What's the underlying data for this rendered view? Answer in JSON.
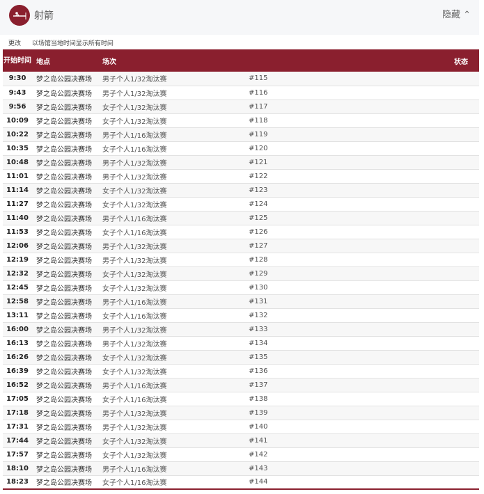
{
  "header": {
    "sport": "射箭",
    "hide_label": "隐藏",
    "brand_color": "#8a1f2e",
    "logo_icon": "archery-icon"
  },
  "notice": {
    "change": "更改",
    "text": "以场馆当地时间显示所有时间"
  },
  "table": {
    "columns": {
      "time": "开始时间",
      "venue": "地点",
      "event": "场次",
      "status": "状态"
    },
    "rows": [
      {
        "time": "9:30",
        "venue": "梦之岛公园决赛场",
        "event": "男子个人1/32淘汰赛",
        "num": "#115"
      },
      {
        "time": "9:43",
        "venue": "梦之岛公园决赛场",
        "event": "男子个人1/32淘汰赛",
        "num": "#116"
      },
      {
        "time": "9:56",
        "venue": "梦之岛公园决赛场",
        "event": "女子个人1/32淘汰赛",
        "num": "#117"
      },
      {
        "time": "10:09",
        "venue": "梦之岛公园决赛场",
        "event": "女子个人1/32淘汰赛",
        "num": "#118"
      },
      {
        "time": "10:22",
        "venue": "梦之岛公园决赛场",
        "event": "男子个人1/16淘汰赛",
        "num": "#119"
      },
      {
        "time": "10:35",
        "venue": "梦之岛公园决赛场",
        "event": "女子个人1/16淘汰赛",
        "num": "#120"
      },
      {
        "time": "10:48",
        "venue": "梦之岛公园决赛场",
        "event": "男子个人1/32淘汰赛",
        "num": "#121"
      },
      {
        "time": "11:01",
        "venue": "梦之岛公园决赛场",
        "event": "男子个人1/32淘汰赛",
        "num": "#122"
      },
      {
        "time": "11:14",
        "venue": "梦之岛公园决赛场",
        "event": "女子个人1/32淘汰赛",
        "num": "#123"
      },
      {
        "time": "11:27",
        "venue": "梦之岛公园决赛场",
        "event": "女子个人1/32淘汰赛",
        "num": "#124"
      },
      {
        "time": "11:40",
        "venue": "梦之岛公园决赛场",
        "event": "男子个人1/16淘汰赛",
        "num": "#125"
      },
      {
        "time": "11:53",
        "venue": "梦之岛公园决赛场",
        "event": "女子个人1/16淘汰赛",
        "num": "#126"
      },
      {
        "time": "12:06",
        "venue": "梦之岛公园决赛场",
        "event": "男子个人1/32淘汰赛",
        "num": "#127"
      },
      {
        "time": "12:19",
        "venue": "梦之岛公园决赛场",
        "event": "男子个人1/32淘汰赛",
        "num": "#128"
      },
      {
        "time": "12:32",
        "venue": "梦之岛公园决赛场",
        "event": "女子个人1/32淘汰赛",
        "num": "#129"
      },
      {
        "time": "12:45",
        "venue": "梦之岛公园决赛场",
        "event": "女子个人1/32淘汰赛",
        "num": "#130"
      },
      {
        "time": "12:58",
        "venue": "梦之岛公园决赛场",
        "event": "男子个人1/16淘汰赛",
        "num": "#131"
      },
      {
        "time": "13:11",
        "venue": "梦之岛公园决赛场",
        "event": "女子个人1/16淘汰赛",
        "num": "#132"
      },
      {
        "time": "16:00",
        "venue": "梦之岛公园决赛场",
        "event": "男子个人1/32淘汰赛",
        "num": "#133"
      },
      {
        "time": "16:13",
        "venue": "梦之岛公园决赛场",
        "event": "男子个人1/32淘汰赛",
        "num": "#134"
      },
      {
        "time": "16:26",
        "venue": "梦之岛公园决赛场",
        "event": "女子个人1/32淘汰赛",
        "num": "#135"
      },
      {
        "time": "16:39",
        "venue": "梦之岛公园决赛场",
        "event": "女子个人1/32淘汰赛",
        "num": "#136"
      },
      {
        "time": "16:52",
        "venue": "梦之岛公园决赛场",
        "event": "男子个人1/16淘汰赛",
        "num": "#137"
      },
      {
        "time": "17:05",
        "venue": "梦之岛公园决赛场",
        "event": "女子个人1/16淘汰赛",
        "num": "#138"
      },
      {
        "time": "17:18",
        "venue": "梦之岛公园决赛场",
        "event": "男子个人1/32淘汰赛",
        "num": "#139"
      },
      {
        "time": "17:31",
        "venue": "梦之岛公园决赛场",
        "event": "男子个人1/32淘汰赛",
        "num": "#140"
      },
      {
        "time": "17:44",
        "venue": "梦之岛公园决赛场",
        "event": "女子个人1/32淘汰赛",
        "num": "#141"
      },
      {
        "time": "17:57",
        "venue": "梦之岛公园决赛场",
        "event": "女子个人1/32淘汰赛",
        "num": "#142"
      },
      {
        "time": "18:10",
        "venue": "梦之岛公园决赛场",
        "event": "男子个人1/16淘汰赛",
        "num": "#143"
      },
      {
        "time": "18:23",
        "venue": "梦之岛公园决赛场",
        "event": "女子个人1/16淘汰赛",
        "num": "#144"
      }
    ]
  }
}
